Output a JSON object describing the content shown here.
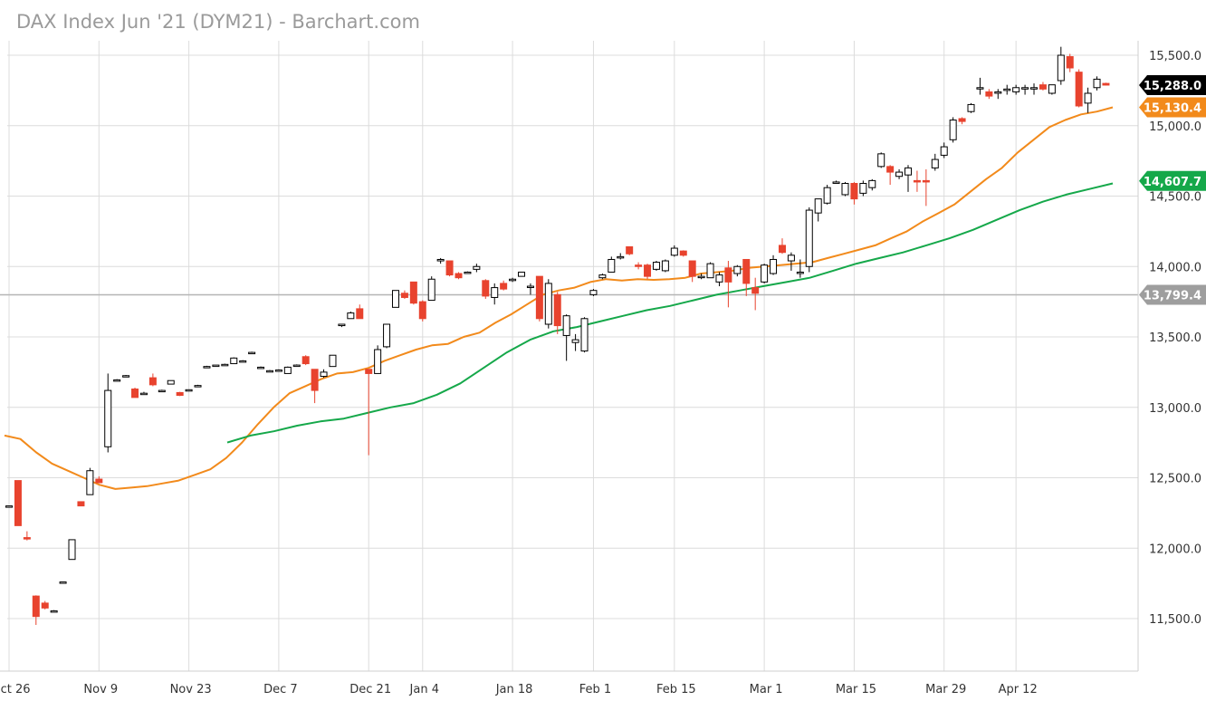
{
  "chart_data": {
    "type": "candlestick",
    "title": "DAX Index Jun '21 (DYM21) - Barchart.com",
    "x_tick_labels": [
      "Oct 26",
      "Nov 9",
      "Nov 23",
      "Dec 7",
      "Dec 21",
      "Jan 4",
      "Jan 18",
      "Feb 1",
      "Feb 15",
      "Mar 1",
      "Mar 15",
      "Mar 29",
      "Apr 12"
    ],
    "y_tick_labels": [
      "11,500.0",
      "12,000.0",
      "12,500.0",
      "13,000.0",
      "13,500.0",
      "14,000.0",
      "14,500.0",
      "15,000.0",
      "15,500.0"
    ],
    "ylim": [
      11300,
      15750
    ],
    "grid": true,
    "colors": {
      "up_fill": "#ffffff",
      "up_stroke": "#000000",
      "down_fill": "#e8432e",
      "ma_short": "#f28a1b",
      "ma_long": "#15a84a",
      "reference_line": "#b5b5b5",
      "grid": "#dcdcdc"
    },
    "price_badges": [
      {
        "label": "15,288.0",
        "value": 15288.0,
        "color": "#000000"
      },
      {
        "label": "15,130.4",
        "value": 15130.4,
        "color": "#f28a1b"
      },
      {
        "label": "14,607.7",
        "value": 14607.7,
        "color": "#15a84a"
      },
      {
        "label": "13,799.4",
        "value": 13799.4,
        "color": "#9e9e9e"
      }
    ],
    "reference_level": 13799.4,
    "candles": [
      {
        "date": "Oct 26",
        "o": 12300,
        "h": 12300,
        "l": 12300,
        "c": 12300
      },
      {
        "date": "Oct 27",
        "o": 12480,
        "h": 12480,
        "l": 12160,
        "c": 12160
      },
      {
        "date": "Oct 28",
        "o": 12075,
        "h": 12120,
        "l": 12055,
        "c": 12065
      },
      {
        "date": "Oct 29",
        "o": 11660,
        "h": 11665,
        "l": 11455,
        "c": 11515
      },
      {
        "date": "Oct 30",
        "o": 11610,
        "h": 11625,
        "l": 11565,
        "c": 11575
      },
      {
        "date": "Nov 2",
        "o": 11555,
        "h": 11560,
        "l": 11550,
        "c": 11555
      },
      {
        "date": "Nov 3",
        "o": 11760,
        "h": 11760,
        "l": 11760,
        "c": 11760
      },
      {
        "date": "Nov 4",
        "o": 11920,
        "h": 12060,
        "l": 11920,
        "c": 12060
      },
      {
        "date": "Nov 5",
        "o": 12330,
        "h": 12330,
        "l": 12300,
        "c": 12300
      },
      {
        "date": "Nov 6",
        "o": 12380,
        "h": 12570,
        "l": 12380,
        "c": 12550
      },
      {
        "date": "Nov 9",
        "o": 12490,
        "h": 12510,
        "l": 12465,
        "c": 12465
      },
      {
        "date": "Nov 10",
        "o": 12720,
        "h": 13240,
        "l": 12680,
        "c": 13120
      },
      {
        "date": "Nov 11",
        "o": 13190,
        "h": 13200,
        "l": 13185,
        "c": 13195
      },
      {
        "date": "Nov 12",
        "o": 13225,
        "h": 13230,
        "l": 13220,
        "c": 13225
      },
      {
        "date": "Nov 13",
        "o": 13130,
        "h": 13140,
        "l": 13070,
        "c": 13070
      },
      {
        "date": "Nov 16",
        "o": 13100,
        "h": 13110,
        "l": 13095,
        "c": 13100
      },
      {
        "date": "Nov 17",
        "o": 13210,
        "h": 13240,
        "l": 13150,
        "c": 13160
      },
      {
        "date": "Nov 18",
        "o": 13120,
        "h": 13125,
        "l": 13115,
        "c": 13120
      },
      {
        "date": "Nov 19",
        "o": 13165,
        "h": 13190,
        "l": 13165,
        "c": 13190
      },
      {
        "date": "Nov 20",
        "o": 13105,
        "h": 13110,
        "l": 13080,
        "c": 13085
      },
      {
        "date": "Nov 23",
        "o": 13120,
        "h": 13125,
        "l": 13120,
        "c": 13125
      },
      {
        "date": "Nov 24",
        "o": 13155,
        "h": 13160,
        "l": 13150,
        "c": 13155
      },
      {
        "date": "Nov 25",
        "o": 13290,
        "h": 13295,
        "l": 13290,
        "c": 13290
      },
      {
        "date": "Nov 26",
        "o": 13295,
        "h": 13300,
        "l": 13295,
        "c": 13300
      },
      {
        "date": "Nov 27",
        "o": 13300,
        "h": 13310,
        "l": 13300,
        "c": 13305
      },
      {
        "date": "Nov 30",
        "o": 13310,
        "h": 13355,
        "l": 13310,
        "c": 13350
      },
      {
        "date": "Dec 1",
        "o": 13330,
        "h": 13335,
        "l": 13325,
        "c": 13330
      },
      {
        "date": "Dec 2",
        "o": 13390,
        "h": 13395,
        "l": 13385,
        "c": 13390
      },
      {
        "date": "Dec 3",
        "o": 13285,
        "h": 13290,
        "l": 13280,
        "c": 13285
      },
      {
        "date": "Dec 4",
        "o": 13260,
        "h": 13265,
        "l": 13255,
        "c": 13260
      },
      {
        "date": "Dec 7",
        "o": 13265,
        "h": 13270,
        "l": 13260,
        "c": 13265
      },
      {
        "date": "Dec 8",
        "o": 13240,
        "h": 13290,
        "l": 13240,
        "c": 13285
      },
      {
        "date": "Dec 9",
        "o": 13300,
        "h": 13305,
        "l": 13295,
        "c": 13300
      },
      {
        "date": "Dec 10",
        "o": 13360,
        "h": 13370,
        "l": 13300,
        "c": 13310
      },
      {
        "date": "Dec 11",
        "o": 13270,
        "h": 13270,
        "l": 13030,
        "c": 13120
      },
      {
        "date": "Dec 14",
        "o": 13220,
        "h": 13270,
        "l": 13210,
        "c": 13250
      },
      {
        "date": "Dec 15",
        "o": 13290,
        "h": 13370,
        "l": 13290,
        "c": 13370
      },
      {
        "date": "Dec 16",
        "o": 13580,
        "h": 13590,
        "l": 13570,
        "c": 13590
      },
      {
        "date": "Dec 17",
        "o": 13630,
        "h": 13680,
        "l": 13630,
        "c": 13670
      },
      {
        "date": "Dec 18",
        "o": 13700,
        "h": 13730,
        "l": 13640,
        "c": 13630
      },
      {
        "date": "Dec 21",
        "o": 13270,
        "h": 13270,
        "l": 12660,
        "c": 13240
      },
      {
        "date": "Dec 22",
        "o": 13240,
        "h": 13440,
        "l": 13240,
        "c": 13410
      },
      {
        "date": "Dec 23",
        "o": 13430,
        "h": 13590,
        "l": 13420,
        "c": 13590
      },
      {
        "date": "Dec 28",
        "o": 13710,
        "h": 13830,
        "l": 13710,
        "c": 13830
      },
      {
        "date": "Dec 29",
        "o": 13810,
        "h": 13830,
        "l": 13770,
        "c": 13780
      },
      {
        "date": "Dec 30",
        "o": 13890,
        "h": 13890,
        "l": 13730,
        "c": 13740
      },
      {
        "date": "Jan 4",
        "o": 13750,
        "h": 13760,
        "l": 13610,
        "c": 13630
      },
      {
        "date": "Jan 5",
        "o": 13760,
        "h": 13930,
        "l": 13760,
        "c": 13910
      },
      {
        "date": "Jan 6",
        "o": 14040,
        "h": 14060,
        "l": 14020,
        "c": 14050
      },
      {
        "date": "Jan 7",
        "o": 14040,
        "h": 14040,
        "l": 13930,
        "c": 13940
      },
      {
        "date": "Jan 8",
        "o": 13950,
        "h": 13960,
        "l": 13910,
        "c": 13920
      },
      {
        "date": "Jan 11",
        "o": 13960,
        "h": 13965,
        "l": 13955,
        "c": 13960
      },
      {
        "date": "Jan 12",
        "o": 13980,
        "h": 14020,
        "l": 13960,
        "c": 14000
      },
      {
        "date": "Jan 13",
        "o": 13900,
        "h": 13910,
        "l": 13770,
        "c": 13790
      },
      {
        "date": "Jan 14",
        "o": 13780,
        "h": 13880,
        "l": 13730,
        "c": 13850
      },
      {
        "date": "Jan 15",
        "o": 13880,
        "h": 13900,
        "l": 13830,
        "c": 13840
      },
      {
        "date": "Jan 18",
        "o": 13900,
        "h": 13920,
        "l": 13890,
        "c": 13910
      },
      {
        "date": "Jan 19",
        "o": 13930,
        "h": 13960,
        "l": 13930,
        "c": 13960
      },
      {
        "date": "Jan 20",
        "o": 13860,
        "h": 13880,
        "l": 13800,
        "c": 13860
      },
      {
        "date": "Jan 21",
        "o": 13930,
        "h": 13930,
        "l": 13610,
        "c": 13630
      },
      {
        "date": "Jan 22",
        "o": 13590,
        "h": 13910,
        "l": 13560,
        "c": 13880
      },
      {
        "date": "Jan 25",
        "o": 13800,
        "h": 13820,
        "l": 13520,
        "c": 13580
      },
      {
        "date": "Jan 26",
        "o": 13510,
        "h": 13660,
        "l": 13330,
        "c": 13650
      },
      {
        "date": "Jan 27",
        "o": 13460,
        "h": 13520,
        "l": 13400,
        "c": 13480
      },
      {
        "date": "Jan 28",
        "o": 13400,
        "h": 13640,
        "l": 13390,
        "c": 13630
      },
      {
        "date": "Feb 1",
        "o": 13800,
        "h": 13840,
        "l": 13790,
        "c": 13830
      },
      {
        "date": "Feb 2",
        "o": 13920,
        "h": 13950,
        "l": 13910,
        "c": 13940
      },
      {
        "date": "Feb 3",
        "o": 13960,
        "h": 14070,
        "l": 13960,
        "c": 14050
      },
      {
        "date": "Feb 4",
        "o": 14070,
        "h": 14095,
        "l": 14050,
        "c": 14070
      },
      {
        "date": "Feb 5",
        "o": 14140,
        "h": 14140,
        "l": 14080,
        "c": 14090
      },
      {
        "date": "Feb 8",
        "o": 14010,
        "h": 14030,
        "l": 13980,
        "c": 14000
      },
      {
        "date": "Feb 9",
        "o": 14010,
        "h": 14020,
        "l": 13910,
        "c": 13930
      },
      {
        "date": "Feb 10",
        "o": 13980,
        "h": 14040,
        "l": 13970,
        "c": 14030
      },
      {
        "date": "Feb 11",
        "o": 13970,
        "h": 14050,
        "l": 13960,
        "c": 14040
      },
      {
        "date": "Feb 15",
        "o": 14080,
        "h": 14150,
        "l": 14070,
        "c": 14130
      },
      {
        "date": "Feb 16",
        "o": 14110,
        "h": 14115,
        "l": 14070,
        "c": 14080
      },
      {
        "date": "Feb 17",
        "o": 14040,
        "h": 14040,
        "l": 13890,
        "c": 13930
      },
      {
        "date": "Feb 18",
        "o": 13930,
        "h": 13950,
        "l": 13910,
        "c": 13930
      },
      {
        "date": "Feb 19",
        "o": 13920,
        "h": 14030,
        "l": 13920,
        "c": 14020
      },
      {
        "date": "Feb 22",
        "o": 13890,
        "h": 13960,
        "l": 13860,
        "c": 13940
      },
      {
        "date": "Feb 23",
        "o": 13990,
        "h": 14040,
        "l": 13710,
        "c": 13890
      },
      {
        "date": "Feb 24",
        "o": 13950,
        "h": 14010,
        "l": 13930,
        "c": 14000
      },
      {
        "date": "Feb 25",
        "o": 14050,
        "h": 14050,
        "l": 13790,
        "c": 13880
      },
      {
        "date": "Feb 26",
        "o": 13850,
        "h": 13920,
        "l": 13690,
        "c": 13810
      },
      {
        "date": "Mar 1",
        "o": 13890,
        "h": 14020,
        "l": 13880,
        "c": 14010
      },
      {
        "date": "Mar 2",
        "o": 13950,
        "h": 14080,
        "l": 13940,
        "c": 14050
      },
      {
        "date": "Mar 3",
        "o": 14150,
        "h": 14200,
        "l": 14090,
        "c": 14100
      },
      {
        "date": "Mar 4",
        "o": 14040,
        "h": 14100,
        "l": 13970,
        "c": 14080
      },
      {
        "date": "Mar 5",
        "o": 13960,
        "h": 14050,
        "l": 13920,
        "c": 13960
      },
      {
        "date": "Mar 8",
        "o": 14000,
        "h": 14420,
        "l": 13960,
        "c": 14400
      },
      {
        "date": "Mar 9",
        "o": 14380,
        "h": 14480,
        "l": 14320,
        "c": 14480
      },
      {
        "date": "Mar 10",
        "o": 14450,
        "h": 14580,
        "l": 14440,
        "c": 14560
      },
      {
        "date": "Mar 11",
        "o": 14600,
        "h": 14610,
        "l": 14590,
        "c": 14600
      },
      {
        "date": "Mar 12",
        "o": 14510,
        "h": 14600,
        "l": 14500,
        "c": 14590
      },
      {
        "date": "Mar 15",
        "o": 14590,
        "h": 14600,
        "l": 14440,
        "c": 14480
      },
      {
        "date": "Mar 16",
        "o": 14520,
        "h": 14610,
        "l": 14500,
        "c": 14590
      },
      {
        "date": "Mar 17",
        "o": 14560,
        "h": 14620,
        "l": 14540,
        "c": 14610
      },
      {
        "date": "Mar 18",
        "o": 14710,
        "h": 14810,
        "l": 14700,
        "c": 14800
      },
      {
        "date": "Mar 19",
        "o": 14710,
        "h": 14720,
        "l": 14580,
        "c": 14670
      },
      {
        "date": "Mar 22",
        "o": 14640,
        "h": 14690,
        "l": 14620,
        "c": 14670
      },
      {
        "date": "Mar 23",
        "o": 14650,
        "h": 14720,
        "l": 14530,
        "c": 14700
      },
      {
        "date": "Mar 24",
        "o": 14610,
        "h": 14680,
        "l": 14530,
        "c": 14600
      },
      {
        "date": "Mar 25",
        "o": 14610,
        "h": 14690,
        "l": 14430,
        "c": 14600
      },
      {
        "date": "Mar 26",
        "o": 14700,
        "h": 14800,
        "l": 14680,
        "c": 14760
      },
      {
        "date": "Mar 29",
        "o": 14790,
        "h": 14880,
        "l": 14770,
        "c": 14850
      },
      {
        "date": "Mar 30",
        "o": 14900,
        "h": 15060,
        "l": 14880,
        "c": 15040
      },
      {
        "date": "Mar 31",
        "o": 15050,
        "h": 15060,
        "l": 15010,
        "c": 15030
      },
      {
        "date": "Apr 1",
        "o": 15100,
        "h": 15160,
        "l": 15090,
        "c": 15150
      },
      {
        "date": "Apr 6",
        "o": 15270,
        "h": 15340,
        "l": 15220,
        "c": 15270
      },
      {
        "date": "Apr 7",
        "o": 15240,
        "h": 15260,
        "l": 15190,
        "c": 15210
      },
      {
        "date": "Apr 8",
        "o": 15230,
        "h": 15260,
        "l": 15190,
        "c": 15240
      },
      {
        "date": "Apr 9",
        "o": 15250,
        "h": 15290,
        "l": 15220,
        "c": 15260
      },
      {
        "date": "Apr 12",
        "o": 15240,
        "h": 15290,
        "l": 15220,
        "c": 15270
      },
      {
        "date": "Apr 13",
        "o": 15260,
        "h": 15290,
        "l": 15220,
        "c": 15270
      },
      {
        "date": "Apr 14",
        "o": 15260,
        "h": 15300,
        "l": 15220,
        "c": 15270
      },
      {
        "date": "Apr 15",
        "o": 15290,
        "h": 15310,
        "l": 15250,
        "c": 15260
      },
      {
        "date": "Apr 16",
        "o": 15230,
        "h": 15280,
        "l": 15220,
        "c": 15290
      },
      {
        "date": "Apr 19",
        "o": 15320,
        "h": 15560,
        "l": 15290,
        "c": 15500
      },
      {
        "date": "Apr 20",
        "o": 15490,
        "h": 15510,
        "l": 15380,
        "c": 15410
      },
      {
        "date": "Apr 21",
        "o": 15380,
        "h": 15400,
        "l": 15130,
        "c": 15140
      },
      {
        "date": "Apr 22",
        "o": 15160,
        "h": 15270,
        "l": 15090,
        "c": 15230
      },
      {
        "date": "Apr 23",
        "o": 15270,
        "h": 15350,
        "l": 15250,
        "c": 15330
      },
      {
        "date": "Apr 26",
        "o": 15300,
        "h": 15305,
        "l": 15285,
        "c": 15288
      }
    ],
    "series": [
      {
        "values": [
          12800,
          12775,
          12680,
          12600,
          12550,
          12500,
          12450,
          12420,
          12430,
          12440,
          12460,
          12480,
          12520,
          12560,
          12640,
          12750,
          12880,
          13000,
          13100,
          13150,
          13200,
          13240,
          13250,
          13280,
          13330,
          13370,
          13410,
          13440,
          13450,
          13500,
          13530,
          13600,
          13660,
          13730,
          13800,
          13830,
          13850,
          13890,
          13910,
          13900,
          13910,
          13905,
          13910,
          13920,
          13950,
          13960,
          13970,
          13990,
          14000,
          14010,
          14020,
          14030,
          14060,
          14090,
          14120,
          14150,
          14200,
          14250,
          14320,
          14380,
          14440,
          14530,
          14620,
          14700,
          14810,
          14900,
          14990,
          15040,
          15080,
          15100,
          15130
        ]
      },
      {
        "values": [
          12750,
          12800,
          12830,
          12870,
          12900,
          12920,
          12960,
          13000,
          13030,
          13090,
          13170,
          13280,
          13390,
          13480,
          13540,
          13570,
          13610,
          13650,
          13690,
          13720,
          13760,
          13800,
          13830,
          13860,
          13890,
          13920,
          13970,
          14020,
          14060,
          14100,
          14150,
          14200,
          14260,
          14330,
          14400,
          14460,
          14510,
          14550,
          14590
        ]
      }
    ]
  }
}
